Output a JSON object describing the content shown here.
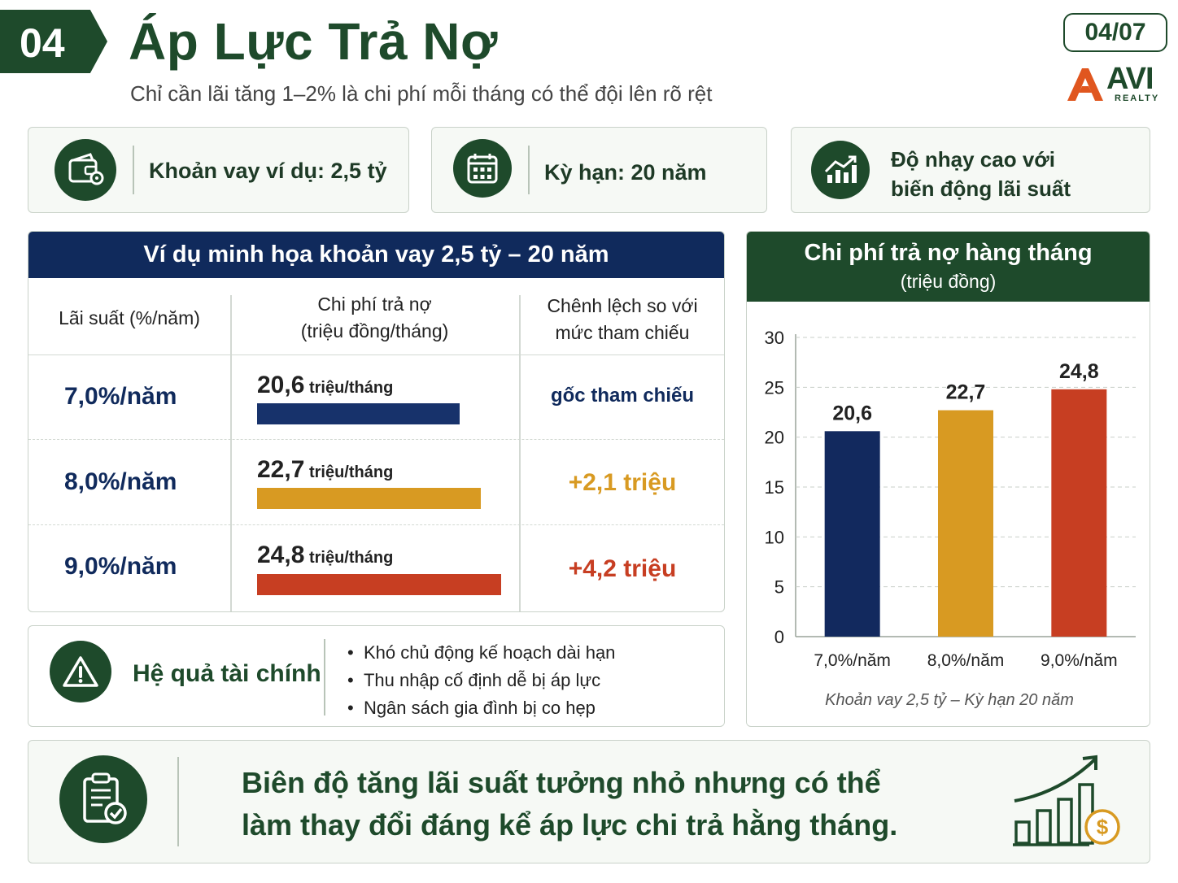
{
  "header": {
    "number": "04",
    "title": "Áp Lực Trả Nợ",
    "subtitle": "Chỉ cần lãi tăng 1–2% là chi phí mỗi tháng có thể đội lên rõ rệt",
    "page": "04/07",
    "brand": "AVI",
    "brand_sub": "REALTY"
  },
  "info_cards": [
    {
      "icon": "wallet-icon",
      "text": "Khoản vay ví dụ: 2,5 tỷ"
    },
    {
      "icon": "calendar-icon",
      "text": "Kỳ hạn: 20 năm"
    },
    {
      "icon": "chart-up-icon",
      "text_line1": "Độ nhạy cao với",
      "text_line2": "biến động lãi suất"
    }
  ],
  "table": {
    "title": "Ví dụ minh họa khoản vay 2,5 tỷ – 20 năm",
    "col1": "Lãi suất (%/năm)",
    "col2_line1": "Chi phí trả nợ",
    "col2_line2": "(triệu đồng/tháng)",
    "col3_line1": "Chênh lệch so với",
    "col3_line2": "mức tham chiếu",
    "unit": "triệu/tháng",
    "rows": [
      {
        "rate": "7,0%/năm",
        "value": "20,6",
        "bar": 20.6,
        "diff": "gốc tham chiếu",
        "color": "#17326b",
        "diff_color": "#102a5c"
      },
      {
        "rate": "8,0%/năm",
        "value": "22,7",
        "bar": 22.7,
        "diff": "+2,1 triệu",
        "color": "#d89a22",
        "diff_color": "#d89a22"
      },
      {
        "rate": "9,0%/năm",
        "value": "24,8",
        "bar": 24.8,
        "diff": "+4,2 triệu",
        "color": "#c73e22",
        "diff_color": "#c73e22"
      }
    ]
  },
  "consequence": {
    "icon": "warning-icon",
    "title": "Hệ quả tài chính",
    "bullets": [
      "Khó chủ động kế hoạch dài hạn",
      "Thu nhập cố định dễ bị áp lực",
      "Ngân sách gia đình bị co hẹp"
    ]
  },
  "chart_data": {
    "type": "bar",
    "title": "Chi phí trả nợ hàng tháng",
    "subtitle": "(triệu đồng)",
    "categories": [
      "7,0%/năm",
      "8,0%/năm",
      "9,0%/năm"
    ],
    "values": [
      20.6,
      22.7,
      24.8
    ],
    "value_labels": [
      "20,6",
      "22,7",
      "24,8"
    ],
    "colors": [
      "#12295e",
      "#d89a22",
      "#c73e22"
    ],
    "yticks": [
      "0",
      "5",
      "10",
      "15",
      "20",
      "25",
      "30"
    ],
    "ylim": [
      0,
      30
    ],
    "grid": true,
    "xlabel": "Khoản vay 2,5 tỷ – Kỳ hạn 20 năm",
    "ylabel": ""
  },
  "bottom": {
    "icon": "clipboard-check-icon",
    "line1": "Biên độ tăng lãi suất tưởng nhỏ nhưng có thể",
    "line2": "làm thay đổi đáng kể áp lực chi trả hằng tháng.",
    "deco_icon": "growth-coin-icon",
    "accent": "#1e4a2b"
  }
}
